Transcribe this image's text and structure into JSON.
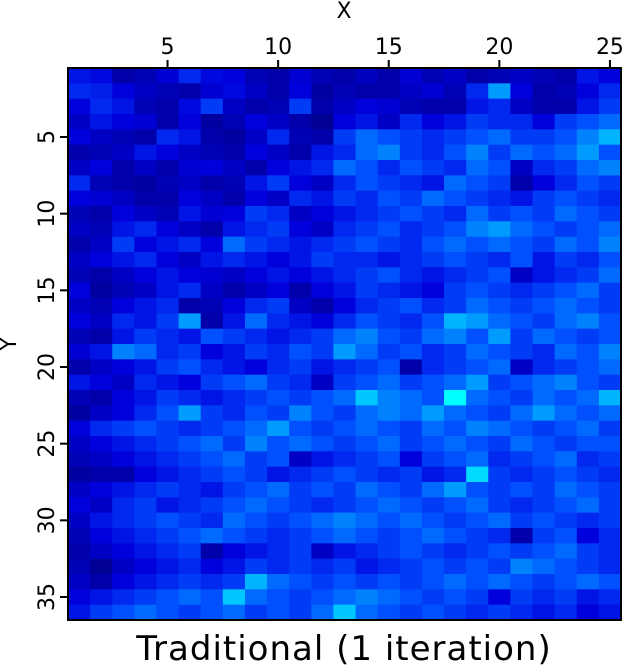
{
  "chart_data": {
    "type": "heatmap",
    "title": "Traditional (1 iteration)",
    "xlabel": "X",
    "ylabel": "Y",
    "x_axis_position": "top",
    "y_axis_direction": "down",
    "xlim": [
      1,
      25
    ],
    "ylim": [
      1,
      35
    ],
    "xticks": [
      5,
      10,
      15,
      20,
      25
    ],
    "yticks": [
      5,
      10,
      15,
      20,
      25,
      30,
      35
    ],
    "ncols": 25,
    "nrows": 36,
    "colormap": {
      "name": "blue-cyan-green",
      "stops": [
        "#00007a",
        "#0000dc",
        "#0050ff",
        "#00b4ff",
        "#00ffff",
        "#7dff7d"
      ]
    },
    "value_range": [
      0,
      1
    ],
    "values": [
      [
        0.25,
        0.22,
        0.1,
        0.12,
        0.18,
        0.3,
        0.22,
        0.2,
        0.12,
        0.1,
        0.18,
        0.12,
        0.1,
        0.14,
        0.1,
        0.18,
        0.12,
        0.15,
        0.1,
        0.12,
        0.15,
        0.12,
        0.1,
        0.25,
        0.2
      ],
      [
        0.3,
        0.28,
        0.2,
        0.15,
        0.12,
        0.1,
        0.18,
        0.22,
        0.15,
        0.1,
        0.2,
        0.08,
        0.12,
        0.1,
        0.1,
        0.15,
        0.18,
        0.12,
        0.3,
        0.55,
        0.2,
        0.1,
        0.12,
        0.2,
        0.3
      ],
      [
        0.2,
        0.3,
        0.25,
        0.12,
        0.1,
        0.22,
        0.35,
        0.15,
        0.1,
        0.12,
        0.35,
        0.1,
        0.15,
        0.2,
        0.18,
        0.12,
        0.1,
        0.1,
        0.25,
        0.3,
        0.15,
        0.1,
        0.1,
        0.25,
        0.35
      ],
      [
        0.15,
        0.25,
        0.2,
        0.18,
        0.1,
        0.2,
        0.08,
        0.12,
        0.2,
        0.15,
        0.1,
        0.05,
        0.2,
        0.25,
        0.15,
        0.3,
        0.2,
        0.25,
        0.35,
        0.3,
        0.3,
        0.2,
        0.35,
        0.4,
        0.45
      ],
      [
        0.2,
        0.15,
        0.12,
        0.1,
        0.3,
        0.25,
        0.1,
        0.08,
        0.15,
        0.3,
        0.12,
        0.1,
        0.35,
        0.45,
        0.4,
        0.35,
        0.3,
        0.35,
        0.4,
        0.45,
        0.35,
        0.35,
        0.4,
        0.5,
        0.6
      ],
      [
        0.1,
        0.12,
        0.15,
        0.25,
        0.2,
        0.15,
        0.12,
        0.1,
        0.2,
        0.15,
        0.1,
        0.25,
        0.3,
        0.45,
        0.5,
        0.35,
        0.3,
        0.4,
        0.5,
        0.35,
        0.45,
        0.4,
        0.45,
        0.55,
        0.4
      ],
      [
        0.15,
        0.2,
        0.1,
        0.15,
        0.1,
        0.18,
        0.2,
        0.15,
        0.1,
        0.2,
        0.25,
        0.3,
        0.45,
        0.4,
        0.3,
        0.4,
        0.35,
        0.3,
        0.45,
        0.4,
        0.15,
        0.3,
        0.35,
        0.45,
        0.5
      ],
      [
        0.3,
        0.12,
        0.1,
        0.08,
        0.12,
        0.15,
        0.1,
        0.12,
        0.25,
        0.35,
        0.2,
        0.15,
        0.3,
        0.4,
        0.35,
        0.3,
        0.25,
        0.45,
        0.4,
        0.35,
        0.1,
        0.2,
        0.3,
        0.4,
        0.35
      ],
      [
        0.2,
        0.18,
        0.15,
        0.1,
        0.1,
        0.2,
        0.15,
        0.1,
        0.2,
        0.15,
        0.3,
        0.25,
        0.35,
        0.3,
        0.4,
        0.35,
        0.45,
        0.4,
        0.35,
        0.3,
        0.25,
        0.35,
        0.4,
        0.35,
        0.3
      ],
      [
        0.12,
        0.1,
        0.2,
        0.15,
        0.12,
        0.25,
        0.18,
        0.2,
        0.35,
        0.3,
        0.15,
        0.2,
        0.25,
        0.3,
        0.35,
        0.4,
        0.35,
        0.3,
        0.45,
        0.35,
        0.4,
        0.35,
        0.45,
        0.4,
        0.35
      ],
      [
        0.15,
        0.12,
        0.25,
        0.3,
        0.2,
        0.15,
        0.1,
        0.25,
        0.3,
        0.35,
        0.2,
        0.15,
        0.3,
        0.35,
        0.4,
        0.3,
        0.35,
        0.4,
        0.5,
        0.55,
        0.45,
        0.4,
        0.35,
        0.4,
        0.45
      ],
      [
        0.1,
        0.15,
        0.35,
        0.2,
        0.25,
        0.3,
        0.2,
        0.45,
        0.35,
        0.3,
        0.25,
        0.3,
        0.35,
        0.4,
        0.35,
        0.3,
        0.4,
        0.45,
        0.4,
        0.45,
        0.4,
        0.35,
        0.45,
        0.4,
        0.5
      ],
      [
        0.15,
        0.2,
        0.25,
        0.3,
        0.2,
        0.15,
        0.25,
        0.3,
        0.25,
        0.2,
        0.25,
        0.35,
        0.3,
        0.3,
        0.25,
        0.3,
        0.35,
        0.4,
        0.35,
        0.3,
        0.4,
        0.25,
        0.35,
        0.3,
        0.4
      ],
      [
        0.12,
        0.1,
        0.15,
        0.2,
        0.25,
        0.2,
        0.18,
        0.15,
        0.2,
        0.25,
        0.2,
        0.25,
        0.3,
        0.35,
        0.4,
        0.3,
        0.25,
        0.3,
        0.35,
        0.4,
        0.15,
        0.25,
        0.3,
        0.35,
        0.45
      ],
      [
        0.2,
        0.08,
        0.12,
        0.15,
        0.25,
        0.3,
        0.15,
        0.1,
        0.15,
        0.2,
        0.1,
        0.2,
        0.25,
        0.35,
        0.3,
        0.25,
        0.2,
        0.35,
        0.4,
        0.35,
        0.3,
        0.35,
        0.4,
        0.45,
        0.35
      ],
      [
        0.15,
        0.12,
        0.2,
        0.25,
        0.3,
        0.1,
        0.12,
        0.2,
        0.3,
        0.35,
        0.15,
        0.1,
        0.2,
        0.3,
        0.35,
        0.4,
        0.3,
        0.35,
        0.45,
        0.4,
        0.35,
        0.4,
        0.45,
        0.4,
        0.35
      ],
      [
        0.2,
        0.15,
        0.3,
        0.25,
        0.35,
        0.55,
        0.1,
        0.25,
        0.45,
        0.3,
        0.25,
        0.2,
        0.3,
        0.4,
        0.35,
        0.3,
        0.4,
        0.6,
        0.55,
        0.45,
        0.4,
        0.35,
        0.45,
        0.5,
        0.4
      ],
      [
        0.12,
        0.1,
        0.25,
        0.35,
        0.3,
        0.25,
        0.4,
        0.35,
        0.3,
        0.25,
        0.3,
        0.35,
        0.45,
        0.5,
        0.4,
        0.35,
        0.45,
        0.5,
        0.4,
        0.55,
        0.35,
        0.45,
        0.4,
        0.35,
        0.4
      ],
      [
        0.18,
        0.25,
        0.5,
        0.45,
        0.3,
        0.35,
        0.2,
        0.25,
        0.35,
        0.3,
        0.4,
        0.35,
        0.55,
        0.45,
        0.35,
        0.4,
        0.3,
        0.35,
        0.45,
        0.4,
        0.35,
        0.3,
        0.45,
        0.4,
        0.5
      ],
      [
        0.1,
        0.15,
        0.2,
        0.25,
        0.35,
        0.4,
        0.3,
        0.25,
        0.2,
        0.3,
        0.35,
        0.25,
        0.3,
        0.35,
        0.4,
        0.1,
        0.3,
        0.35,
        0.4,
        0.45,
        0.15,
        0.3,
        0.35,
        0.4,
        0.45
      ],
      [
        0.25,
        0.2,
        0.15,
        0.3,
        0.25,
        0.2,
        0.35,
        0.4,
        0.45,
        0.35,
        0.3,
        0.15,
        0.35,
        0.4,
        0.45,
        0.35,
        0.4,
        0.45,
        0.55,
        0.35,
        0.4,
        0.45,
        0.5,
        0.4,
        0.35
      ],
      [
        0.12,
        0.1,
        0.2,
        0.25,
        0.35,
        0.3,
        0.25,
        0.3,
        0.35,
        0.4,
        0.35,
        0.4,
        0.45,
        0.65,
        0.5,
        0.45,
        0.4,
        0.8,
        0.45,
        0.4,
        0.35,
        0.45,
        0.4,
        0.45,
        0.6
      ],
      [
        0.08,
        0.15,
        0.2,
        0.3,
        0.4,
        0.55,
        0.35,
        0.3,
        0.4,
        0.35,
        0.5,
        0.4,
        0.35,
        0.45,
        0.5,
        0.45,
        0.55,
        0.45,
        0.4,
        0.35,
        0.45,
        0.55,
        0.45,
        0.4,
        0.45
      ],
      [
        0.2,
        0.3,
        0.35,
        0.4,
        0.35,
        0.3,
        0.35,
        0.4,
        0.45,
        0.55,
        0.4,
        0.35,
        0.4,
        0.45,
        0.4,
        0.35,
        0.45,
        0.4,
        0.5,
        0.45,
        0.4,
        0.35,
        0.4,
        0.45,
        0.35
      ],
      [
        0.15,
        0.2,
        0.25,
        0.3,
        0.35,
        0.4,
        0.45,
        0.35,
        0.5,
        0.4,
        0.45,
        0.4,
        0.35,
        0.4,
        0.45,
        0.35,
        0.4,
        0.45,
        0.4,
        0.35,
        0.45,
        0.4,
        0.35,
        0.4,
        0.4
      ],
      [
        0.12,
        0.15,
        0.2,
        0.25,
        0.3,
        0.35,
        0.4,
        0.45,
        0.35,
        0.4,
        0.15,
        0.25,
        0.3,
        0.35,
        0.4,
        0.2,
        0.35,
        0.4,
        0.45,
        0.3,
        0.35,
        0.4,
        0.45,
        0.3,
        0.35
      ],
      [
        0.08,
        0.1,
        0.1,
        0.2,
        0.25,
        0.3,
        0.35,
        0.4,
        0.35,
        0.25,
        0.3,
        0.35,
        0.4,
        0.35,
        0.3,
        0.35,
        0.25,
        0.3,
        0.7,
        0.35,
        0.3,
        0.35,
        0.4,
        0.35,
        0.3
      ],
      [
        0.15,
        0.2,
        0.25,
        0.3,
        0.35,
        0.3,
        0.25,
        0.35,
        0.4,
        0.45,
        0.35,
        0.4,
        0.35,
        0.45,
        0.4,
        0.35,
        0.45,
        0.55,
        0.4,
        0.35,
        0.4,
        0.35,
        0.45,
        0.4,
        0.35
      ],
      [
        0.2,
        0.15,
        0.3,
        0.35,
        0.25,
        0.3,
        0.35,
        0.4,
        0.45,
        0.4,
        0.35,
        0.3,
        0.35,
        0.4,
        0.45,
        0.4,
        0.35,
        0.4,
        0.45,
        0.35,
        0.3,
        0.35,
        0.4,
        0.45,
        0.35
      ],
      [
        0.15,
        0.25,
        0.3,
        0.35,
        0.4,
        0.35,
        0.3,
        0.45,
        0.4,
        0.35,
        0.4,
        0.45,
        0.5,
        0.45,
        0.4,
        0.45,
        0.4,
        0.35,
        0.4,
        0.45,
        0.35,
        0.4,
        0.35,
        0.3,
        0.35
      ],
      [
        0.12,
        0.2,
        0.25,
        0.3,
        0.35,
        0.4,
        0.45,
        0.4,
        0.35,
        0.3,
        0.35,
        0.4,
        0.45,
        0.4,
        0.35,
        0.4,
        0.45,
        0.4,
        0.35,
        0.3,
        0.1,
        0.35,
        0.4,
        0.2,
        0.3
      ],
      [
        0.1,
        0.15,
        0.2,
        0.25,
        0.3,
        0.35,
        0.1,
        0.2,
        0.25,
        0.3,
        0.35,
        0.15,
        0.25,
        0.3,
        0.35,
        0.4,
        0.35,
        0.3,
        0.35,
        0.4,
        0.35,
        0.4,
        0.45,
        0.35,
        0.3
      ],
      [
        0.12,
        0.05,
        0.15,
        0.2,
        0.25,
        0.3,
        0.2,
        0.25,
        0.35,
        0.3,
        0.35,
        0.3,
        0.35,
        0.25,
        0.3,
        0.35,
        0.4,
        0.35,
        0.4,
        0.35,
        0.5,
        0.45,
        0.4,
        0.35,
        0.3
      ],
      [
        0.15,
        0.1,
        0.2,
        0.25,
        0.3,
        0.35,
        0.3,
        0.35,
        0.6,
        0.45,
        0.4,
        0.35,
        0.4,
        0.35,
        0.4,
        0.35,
        0.4,
        0.45,
        0.4,
        0.45,
        0.4,
        0.35,
        0.4,
        0.45,
        0.4
      ],
      [
        0.2,
        0.25,
        0.3,
        0.35,
        0.4,
        0.45,
        0.4,
        0.65,
        0.45,
        0.4,
        0.35,
        0.4,
        0.45,
        0.5,
        0.45,
        0.4,
        0.35,
        0.4,
        0.35,
        0.2,
        0.35,
        0.3,
        0.35,
        0.25,
        0.3
      ],
      [
        0.25,
        0.35,
        0.4,
        0.45,
        0.4,
        0.35,
        0.4,
        0.45,
        0.35,
        0.4,
        0.35,
        0.45,
        0.65,
        0.45,
        0.4,
        0.35,
        0.4,
        0.35,
        0.3,
        0.35,
        0.3,
        0.25,
        0.3,
        0.2,
        0.25
      ]
    ]
  }
}
